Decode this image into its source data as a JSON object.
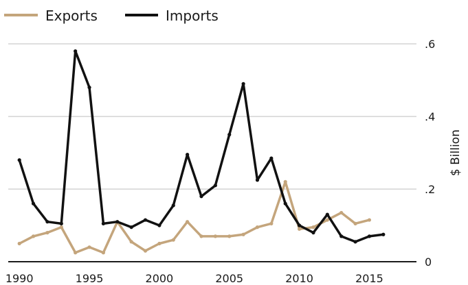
{
  "chart_data": {
    "type": "line",
    "title": "",
    "xlabel": "",
    "ylabel": "$ Billion",
    "xlim": [
      1989.5,
      2016.5
    ],
    "ylim": [
      0,
      0.6
    ],
    "x_ticks": [
      1990,
      1995,
      2000,
      2005,
      2010,
      2015
    ],
    "x_tick_labels": [
      "1990",
      "1995",
      "2000",
      "2005",
      "2010",
      "2015"
    ],
    "y_ticks": [
      0,
      0.2,
      0.4,
      0.6
    ],
    "y_tick_labels": [
      "0",
      ".2",
      ".4",
      ".6"
    ],
    "grid": true,
    "legend_position": "top-left",
    "x": [
      1990,
      1991,
      1992,
      1993,
      1994,
      1995,
      1996,
      1997,
      1998,
      1999,
      2000,
      2001,
      2002,
      2003,
      2004,
      2005,
      2006,
      2007,
      2008,
      2009,
      2010,
      2011,
      2012,
      2013,
      2014,
      2015,
      2016
    ],
    "series": [
      {
        "name": "Exports",
        "color": "#c4a57c",
        "values": [
          0.05,
          0.07,
          0.08,
          0.095,
          0.025,
          0.04,
          0.025,
          0.11,
          0.055,
          0.03,
          0.05,
          0.06,
          0.11,
          0.07,
          0.07,
          0.07,
          0.075,
          0.095,
          0.105,
          0.22,
          0.09,
          0.095,
          0.115,
          0.135,
          0.105,
          0.115,
          null
        ]
      },
      {
        "name": "Imports",
        "color": "#111111",
        "values": [
          0.28,
          0.16,
          0.11,
          0.105,
          0.58,
          0.48,
          0.105,
          0.11,
          0.095,
          0.115,
          0.1,
          0.155,
          0.295,
          0.18,
          0.21,
          0.35,
          0.49,
          0.225,
          0.285,
          0.16,
          0.1,
          0.08,
          0.13,
          0.07,
          0.055,
          0.07,
          0.075
        ]
      }
    ]
  }
}
